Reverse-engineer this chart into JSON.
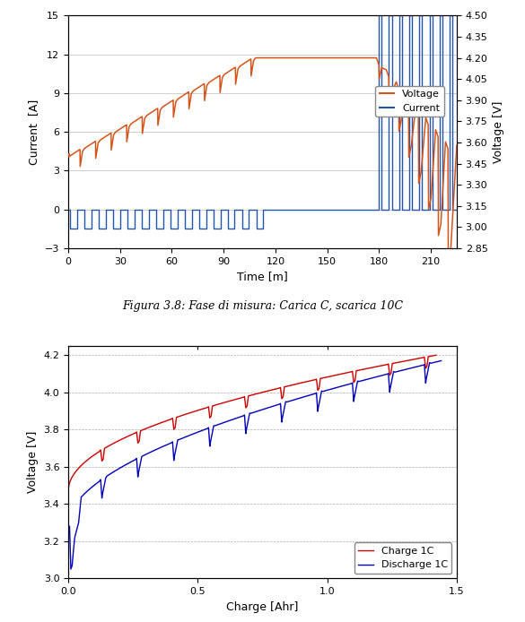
{
  "fig_title": "Figura 3.8: Fase di misura: Carica C, scarica 10C",
  "plot1": {
    "xlabel": "Time [m]",
    "ylabel_left": "Current  [A]",
    "ylabel_right": "Voltage [V]",
    "xlim": [
      0,
      225
    ],
    "ylim_left": [
      -3,
      15
    ],
    "ylim_right": [
      2.85,
      4.5
    ],
    "xticks": [
      0,
      30,
      60,
      90,
      120,
      150,
      180,
      210
    ],
    "yticks_left": [
      -3,
      0,
      3,
      6,
      9,
      12,
      15
    ],
    "yticks_right": [
      2.85,
      3.0,
      3.15,
      3.3,
      3.45,
      3.6,
      3.75,
      3.9,
      4.05,
      4.2,
      4.35,
      4.5
    ],
    "voltage_color": "#D4541A",
    "current_color": "#2255AA",
    "legend_voltage": "Voltage",
    "legend_current": "Current",
    "grid_color": "#C8C8C8"
  },
  "plot2": {
    "xlabel": "Charge [Ahr]",
    "ylabel": "Voltage [V]",
    "xlim": [
      0,
      1.5
    ],
    "ylim": [
      3.0,
      4.25
    ],
    "xticks": [
      0,
      0.5,
      1.0,
      1.5
    ],
    "yticks": [
      3.0,
      3.2,
      3.4,
      3.6,
      3.8,
      4.0,
      4.2
    ],
    "charge_color": "#CC0000",
    "discharge_color": "#0000BB",
    "legend_charge": "Charge 1C",
    "legend_discharge": "Discharge 1C",
    "grid_color": "#888888"
  }
}
